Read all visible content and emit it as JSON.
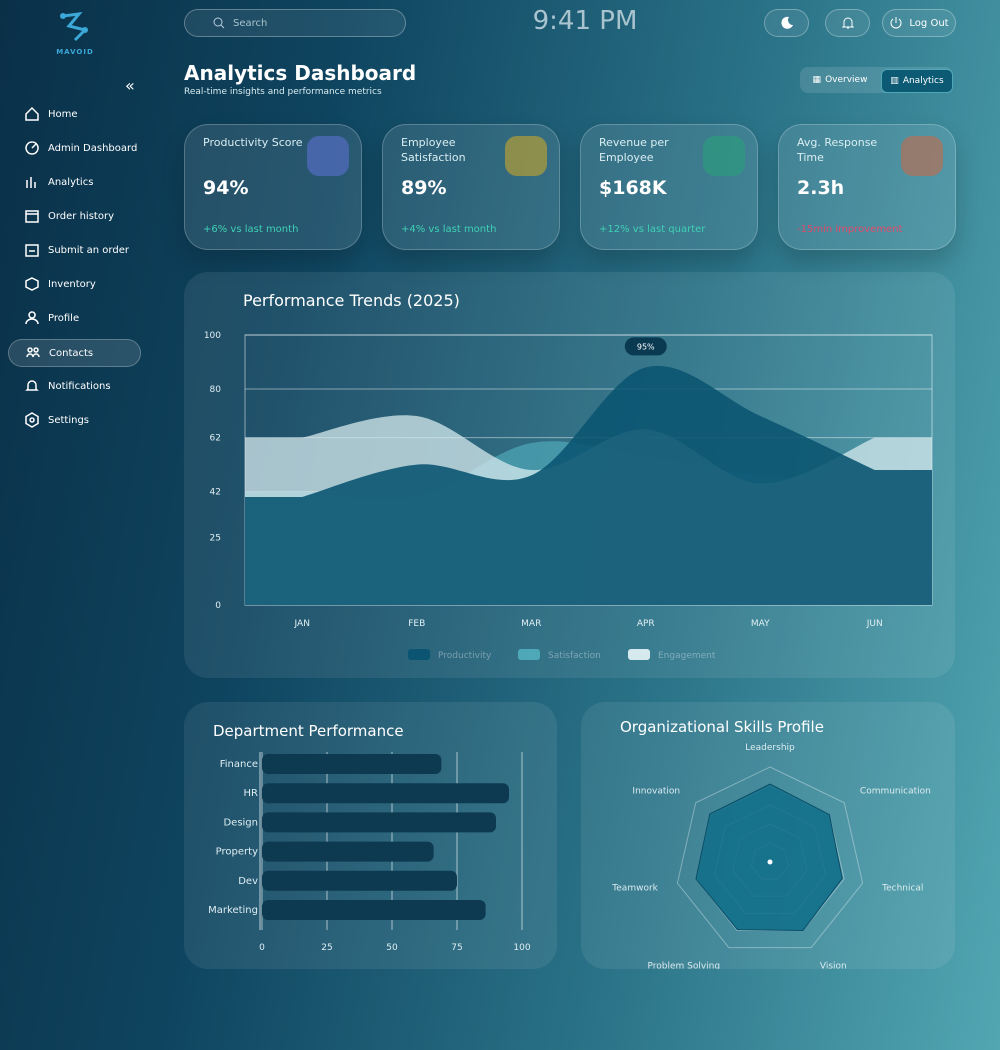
{
  "sidebar": {
    "logo": "MAVOID",
    "nav": [
      "Home",
      "Admin Dashboard",
      "Analytics",
      "Order history",
      "Submit an order",
      "Inventory",
      "Profile",
      "Contacts",
      "Notifications",
      "Settings"
    ]
  },
  "header": {
    "search_placeholder": "Search",
    "time": "9:41 PM",
    "logout": "Log Out"
  },
  "page": {
    "title": "Analytics Dashboard",
    "subtitle": "Real-time insights and performance metrics",
    "tabs": [
      "Overview",
      "Analytics"
    ]
  },
  "kpis": [
    {
      "label": "Productivity Score",
      "value": "94%",
      "change": "+6% vs last month"
    },
    {
      "label": "Employee Satisfaction",
      "value": "89%",
      "change": "+4% vs last month"
    },
    {
      "label": "Revenue per Employee",
      "value": "$168K",
      "change": "+12% vs last quarter"
    },
    {
      "label": "Avg. Response Time",
      "value": "2.3h",
      "change": "-15min improvement"
    }
  ],
  "trends": {
    "type": "area",
    "title": "Performance Trends (2025)",
    "annotation": "95%",
    "categories": [
      "JAN",
      "FEB",
      "MAR",
      "APR",
      "MAY",
      "JUN"
    ],
    "series": [
      {
        "name": "Productivity",
        "color": "#0b5572",
        "values": [
          40,
          52,
          48,
          88,
          70,
          50
        ]
      },
      {
        "name": "Satisfaction",
        "color": "#4fa8b8",
        "values": [
          42,
          40,
          60,
          55,
          48,
          45
        ]
      },
      {
        "name": "Engagement",
        "color": "#d6e9ee",
        "values": [
          62,
          70,
          50,
          65,
          45,
          62
        ]
      }
    ],
    "ylim": [
      0,
      100
    ],
    "yticks": [
      0,
      25,
      42,
      62,
      80,
      100
    ],
    "grid": true
  },
  "department": {
    "type": "bar",
    "title": "Department Performance",
    "categories": [
      "Finance",
      "HR",
      "Design",
      "Property",
      "Dev",
      "Marketing"
    ],
    "values": [
      69,
      95,
      90,
      66,
      75,
      86
    ],
    "color": "#0d3a50",
    "xlim": [
      0,
      100
    ],
    "xticks": [
      0,
      25,
      50,
      75,
      100
    ],
    "grid": true
  },
  "skills": {
    "type": "radar",
    "title": "Organizational Skills Profile",
    "categories": [
      "Leadership",
      "Communication",
      "Technical",
      "Vision",
      "Problem Solving",
      "Teamwork",
      "Innovation"
    ],
    "values": [
      82,
      80,
      78,
      80,
      79,
      80,
      81
    ],
    "color": "#0f6d88",
    "rlim": [
      0,
      100
    ]
  }
}
